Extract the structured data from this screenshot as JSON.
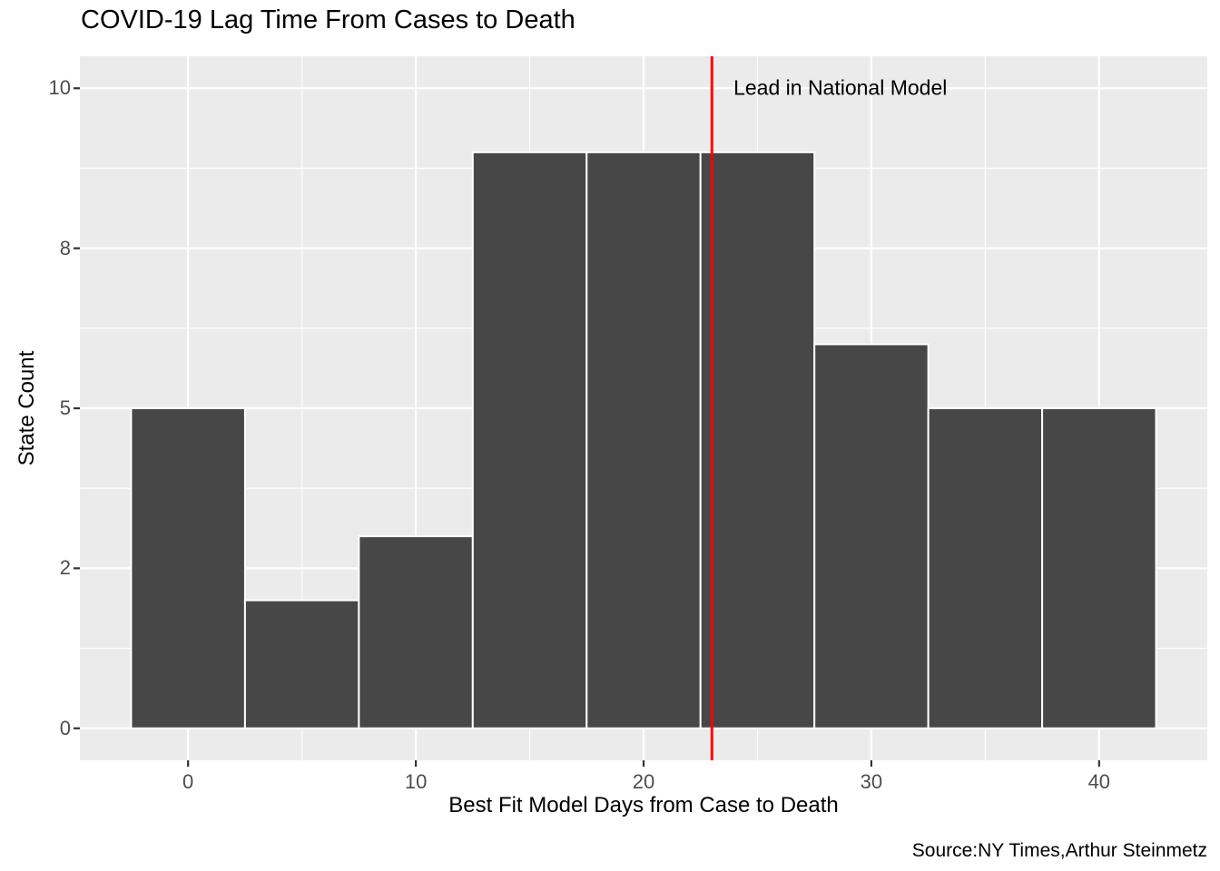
{
  "title": "COVID-19 Lag Time From Cases to Death",
  "caption": "Source:NY Times,Arthur Steinmetz",
  "chart_data": {
    "type": "bar",
    "subtype": "histogram",
    "title": "COVID-19 Lag Time From Cases to Death",
    "xlabel": "Best Fit Model Days from Case to Death",
    "ylabel": "State Count",
    "bin_width": 5,
    "bin_centers": [
      0,
      5,
      10,
      15,
      20,
      25,
      30,
      35,
      40
    ],
    "values": [
      5,
      2,
      3,
      9,
      9,
      9,
      6,
      5,
      5
    ],
    "xlim": [
      -4.75,
      44.75
    ],
    "ylim": [
      -0.5,
      10.5
    ],
    "x_ticks": [
      {
        "value": 0,
        "label": "0"
      },
      {
        "value": 10,
        "label": "10"
      },
      {
        "value": 20,
        "label": "20"
      },
      {
        "value": 30,
        "label": "30"
      },
      {
        "value": 40,
        "label": "40"
      }
    ],
    "y_ticks": [
      {
        "value": 0,
        "label": "0"
      },
      {
        "value": 2.5,
        "label": "2"
      },
      {
        "value": 5,
        "label": "5"
      },
      {
        "value": 7.5,
        "label": "8"
      },
      {
        "value": 10,
        "label": "10"
      }
    ],
    "x_minor": [
      5,
      15,
      25,
      35
    ],
    "y_minor": [
      1.25,
      3.75,
      6.25,
      8.75
    ],
    "grid": "on",
    "legend": "none",
    "vline": {
      "x": 23,
      "label": "Lead in National Model",
      "label_x": 23.95,
      "label_y": 10,
      "color": "#FF0000"
    },
    "colors": {
      "bar_fill": "#474747",
      "bar_stroke": "#FFFFFF",
      "panel_bg": "#EBEBEB",
      "grid_line": "#FFFFFF",
      "tick_label": "#4D4D4D",
      "tick_mark": "#333333",
      "text": "#000000"
    }
  }
}
